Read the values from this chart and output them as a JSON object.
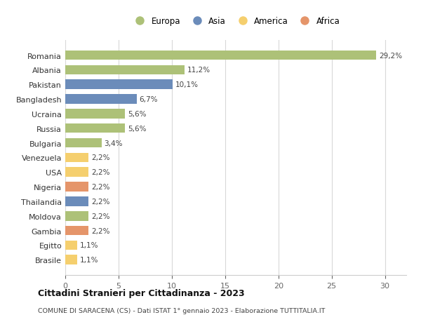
{
  "title": "Cittadini Stranieri per Cittadinanza - 2023",
  "subtitle": "COMUNE DI SARACENA (CS) - Dati ISTAT 1° gennaio 2023 - Elaborazione TUTTITALIA.IT",
  "categories": [
    "Romania",
    "Albania",
    "Pakistan",
    "Bangladesh",
    "Ucraina",
    "Russia",
    "Bulgaria",
    "Venezuela",
    "USA",
    "Nigeria",
    "Thailandia",
    "Moldova",
    "Gambia",
    "Egitto",
    "Brasile"
  ],
  "values": [
    29.2,
    11.2,
    10.1,
    6.7,
    5.6,
    5.6,
    3.4,
    2.2,
    2.2,
    2.2,
    2.2,
    2.2,
    2.2,
    1.1,
    1.1
  ],
  "labels": [
    "29,2%",
    "11,2%",
    "10,1%",
    "6,7%",
    "5,6%",
    "5,6%",
    "3,4%",
    "2,2%",
    "2,2%",
    "2,2%",
    "2,2%",
    "2,2%",
    "2,2%",
    "1,1%",
    "1,1%"
  ],
  "colors": [
    "#adc178",
    "#adc178",
    "#6b8cba",
    "#6b8cba",
    "#adc178",
    "#adc178",
    "#adc178",
    "#f5cf6e",
    "#f5cf6e",
    "#e5956a",
    "#6b8cba",
    "#adc178",
    "#e5956a",
    "#f5cf6e",
    "#f5cf6e"
  ],
  "legend_labels": [
    "Europa",
    "Asia",
    "America",
    "Africa"
  ],
  "legend_colors": [
    "#adc178",
    "#6b8cba",
    "#f5cf6e",
    "#e5956a"
  ],
  "xlim": [
    0,
    32
  ],
  "xticks": [
    0,
    5,
    10,
    15,
    20,
    25,
    30
  ],
  "bg_color": "#ffffff",
  "grid_color": "#d8d8d8",
  "bar_height": 0.65
}
